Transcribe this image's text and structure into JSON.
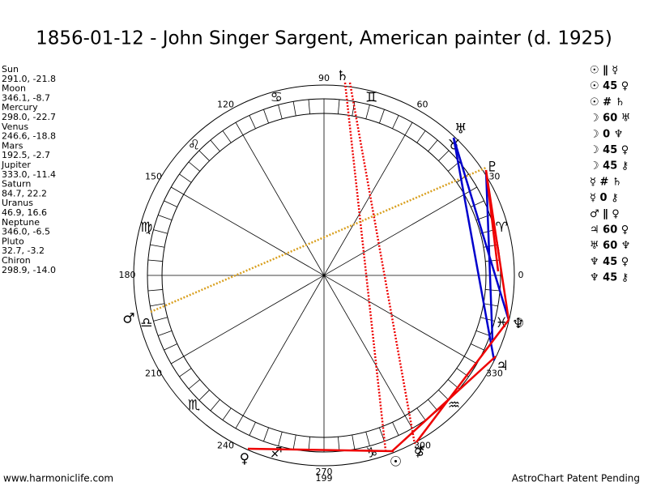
{
  "title": "1856-01-12 - John Singer Sargent, American painter (d. 1925)",
  "planets": [
    {
      "name": "Sun",
      "glyph": "☉",
      "position": "291.0, -21.8"
    },
    {
      "name": "Moon",
      "glyph": "☽",
      "position": "346.1, -8.7"
    },
    {
      "name": "Mercury",
      "glyph": "☿",
      "position": "298.0, -22.7"
    },
    {
      "name": "Venus",
      "glyph": "♀",
      "position": "246.6, -18.8"
    },
    {
      "name": "Mars",
      "glyph": "♂",
      "position": "192.5, -2.7"
    },
    {
      "name": "Jupiter",
      "glyph": "♃",
      "position": "333.0, -11.4"
    },
    {
      "name": "Saturn",
      "glyph": "♄",
      "position": "84.7, 22.2"
    },
    {
      "name": "Uranus",
      "glyph": "♅",
      "position": "46.9, 16.6"
    },
    {
      "name": "Neptune",
      "glyph": "♆",
      "position": "346.0, -6.5"
    },
    {
      "name": "Pluto",
      "glyph": "♇",
      "position": "32.7, -3.2"
    },
    {
      "name": "Chiron",
      "glyph": "⚷",
      "position": "298.9, -14.0"
    }
  ],
  "degree_labels": [
    0,
    30,
    60,
    90,
    120,
    150,
    180,
    210,
    240,
    270,
    300,
    330
  ],
  "signs": [
    "♈",
    "♉",
    "♊",
    "♋",
    "♌",
    "♍",
    "♎",
    "♏",
    "♐",
    "♑",
    "♒",
    "♓"
  ],
  "aspects": [
    "☉ ∥ ☿",
    "☉ 45 ♀",
    "☉ # ♄",
    "☽ 60 ♅",
    "☽ 0 ♆",
    "☽ 45 ♀",
    "☽ 45 ⚷",
    "☿ # ♄",
    "☿ 0 ⚷",
    "♂ ∥ ♀",
    "♃ 60 ♀",
    "♅ 60 ♆",
    "♆ 45 ♀",
    "♆ 45 ⚷"
  ],
  "bottom_label": "199",
  "footer_left": "www.harmoniclife.com",
  "footer_right": "AstroChart Patent Pending"
}
